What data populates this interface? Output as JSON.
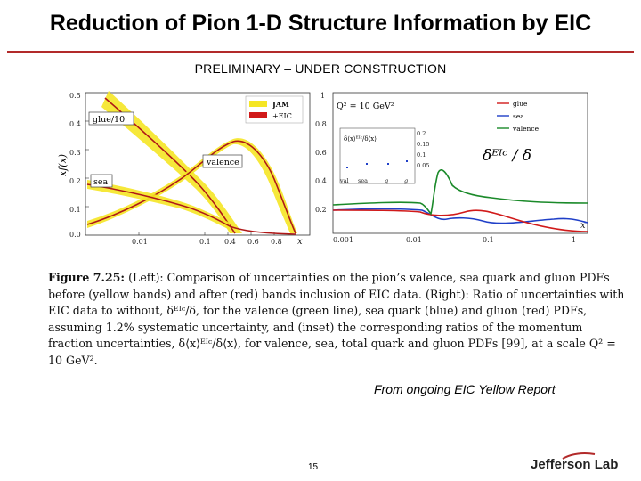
{
  "header": {
    "title": "Reduction of Pion 1-D Structure Information by EIC"
  },
  "banner": {
    "text": "PRELIMINARY – UNDER CONSTRUCTION"
  },
  "left_plot": {
    "y_axis_label": "xf(x)",
    "x_axis_label": "x",
    "y_ticks": [
      "0.0",
      "0.1",
      "0.2",
      "0.3",
      "0.4",
      "0.5"
    ],
    "x_ticks": [
      "0.01",
      "0.1",
      "0.4",
      "0.6",
      "0.8"
    ],
    "curve_labels": {
      "glue": "glue/10",
      "valence": "valence",
      "sea": "sea"
    },
    "legend": [
      {
        "label": "JAM",
        "color": "#f5e625"
      },
      {
        "label": "+EIC",
        "color": "#d11a1a"
      }
    ]
  },
  "right_plot": {
    "scale_label": "Q² = 10 GeV²",
    "x_axis_label": "x",
    "ratio_label": "δᴱᴵᶜ / δ",
    "y_ticks": [
      "0.2",
      "0.4",
      "0.6",
      "0.8",
      "1"
    ],
    "x_ticks": [
      "0.001",
      "0.01",
      "0.1",
      "1"
    ],
    "legend": [
      {
        "label": "glue",
        "color": "#d11a1a"
      },
      {
        "label": "sea",
        "color": "#1f3fc8"
      },
      {
        "label": "valence",
        "color": "#1b8a2a"
      }
    ],
    "inset": {
      "ratio_label": "δ⟨x⟩ᴱᴵᶜ/δ⟨x⟩",
      "y_ticks": [
        "0.2",
        "0.15",
        "0.1",
        "0.05"
      ],
      "categories": [
        "val",
        "sea",
        "q",
        "g"
      ]
    }
  },
  "caption": {
    "figure_label": "Figure 7.25:",
    "text": "(Left): Comparison of uncertainties on the pion’s valence, sea quark and gluon PDFs before (yellow bands) and after (red) bands inclusion of EIC data. (Right): Ratio of uncertainties with EIC data to without, δᴱᴵᶜ/δ, for the valence (green line), sea quark (blue) and gluon (red) PDFs, assuming 1.2% systematic uncertainty, and (inset) the corresponding ratios of the momentum fraction uncertainties, δ⟨x⟩ᴱᴵᶜ/δ⟨x⟩, for valence, sea, total quark and gluon PDFs [99], at a scale Q² = 10 GeV²."
  },
  "footer": {
    "source": "From ongoing EIC Yellow Report",
    "page_number": "15",
    "logo": "Jefferson Lab"
  }
}
